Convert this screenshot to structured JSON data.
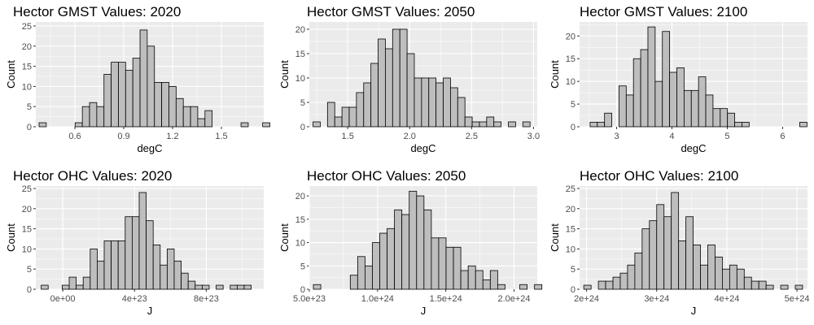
{
  "chart_data": [
    {
      "type": "bar",
      "title": "Hector GMST Values: 2020",
      "xlabel": "degC",
      "ylabel": "Count",
      "xlim": [
        0.36,
        1.76
      ],
      "ylim": [
        0,
        26
      ],
      "xticks": [
        0.6,
        0.9,
        1.2,
        1.5
      ],
      "xtick_labels": [
        "0.6",
        "0.9",
        "1.2",
        "1.5"
      ],
      "yticks": [
        0,
        5,
        10,
        15,
        20,
        25
      ],
      "bin_start": 0.38,
      "bin_width": 0.0443,
      "counts": [
        1,
        0,
        0,
        0,
        0,
        1,
        5,
        6,
        5,
        13,
        16,
        16,
        14,
        17,
        24,
        20,
        11,
        11,
        10,
        7,
        5,
        5,
        2,
        4,
        0,
        0,
        0,
        0,
        1,
        0,
        0,
        1
      ]
    },
    {
      "type": "bar",
      "title": "Hector GMST Values: 2050",
      "xlabel": "degC",
      "ylabel": "Count",
      "xlim": [
        1.19,
        3.03
      ],
      "ylim": [
        0,
        21.5
      ],
      "xticks": [
        1.5,
        2.0,
        2.5,
        3.0
      ],
      "xtick_labels": [
        "1.5",
        "2.0",
        "2.5",
        "3.0"
      ],
      "yticks": [
        0,
        5,
        10,
        15,
        20
      ],
      "bin_start": 1.22,
      "bin_width": 0.0584,
      "counts": [
        1,
        0,
        5,
        2,
        4,
        4,
        7,
        9,
        13,
        18,
        16,
        20,
        20,
        15,
        10,
        10,
        10,
        9,
        10,
        8,
        6,
        2,
        1,
        1,
        2,
        1,
        0,
        1,
        0,
        1
      ]
    },
    {
      "type": "bar",
      "title": "Hector GMST Values: 2100",
      "xlabel": "degC",
      "ylabel": "Count",
      "xlim": [
        2.33,
        6.45
      ],
      "ylim": [
        0,
        23.1
      ],
      "xticks": [
        3,
        4,
        5,
        6
      ],
      "xtick_labels": [
        "3",
        "4",
        "5",
        "6"
      ],
      "yticks": [
        0,
        5,
        10,
        15,
        20
      ],
      "bin_start": 2.52,
      "bin_width": 0.1307,
      "counts": [
        1,
        1,
        3,
        0,
        9,
        7,
        15,
        17,
        22,
        10,
        21,
        12,
        13,
        8,
        8,
        11,
        7,
        4,
        4,
        3,
        1,
        1,
        0,
        0,
        0,
        0,
        0,
        0,
        0,
        1
      ]
    },
    {
      "type": "bar",
      "title": "Hector OHC Values: 2020",
      "xlabel": "J",
      "ylabel": "Count",
      "xlim": [
        -1.5e+23,
        1.12e+24
      ],
      "ylim": [
        0,
        25.6
      ],
      "xticks": [
        0,
        4e+23,
        8e+23
      ],
      "xtick_labels": [
        "0e+00",
        "4e+23",
        "8e+23"
      ],
      "yticks": [
        0,
        5,
        10,
        15,
        20,
        25
      ],
      "bin_start": -1.2e+23,
      "bin_width": 3.9e+22,
      "counts": [
        1,
        0,
        0,
        1,
        3,
        1,
        3,
        10,
        7,
        12,
        12,
        12,
        18,
        18,
        24,
        17,
        11,
        6,
        10,
        7,
        4,
        2,
        1,
        1,
        0,
        1,
        0,
        1,
        1,
        1
      ]
    },
    {
      "type": "bar",
      "title": "Hector OHC Values: 2050",
      "xlabel": "J",
      "ylabel": "Count",
      "xlim": [
        5e+23,
        2.17e+24
      ],
      "ylim": [
        0,
        22.1
      ],
      "xticks": [
        5e+23,
        1e+24,
        1.5e+24,
        2e+24
      ],
      "xtick_labels": [
        "5.0e+23",
        "1.0e+24",
        "1.5e+24",
        "2.0e+24"
      ],
      "yticks": [
        0,
        5,
        10,
        15,
        20
      ],
      "bin_start": 5.3e+23,
      "bin_width": 5.4e+22,
      "counts": [
        1,
        0,
        0,
        0,
        0,
        3,
        7,
        5,
        10,
        12,
        13,
        17,
        16,
        21,
        20,
        17,
        11,
        11,
        9,
        9,
        4,
        5,
        4,
        2,
        4,
        1,
        0,
        0,
        1,
        0,
        1
      ]
    },
    {
      "type": "bar",
      "title": "Hector OHC Values: 2100",
      "xlabel": "J",
      "ylabel": "Count",
      "xlim": [
        1.9e+24,
        5.15e+24
      ],
      "ylim": [
        0,
        25.6
      ],
      "xticks": [
        2e+24,
        3e+24,
        4e+24,
        5e+24
      ],
      "xtick_labels": [
        "2e+24",
        "3e+24",
        "4e+24",
        "5e+24"
      ],
      "yticks": [
        0,
        5,
        10,
        15,
        20,
        25
      ],
      "bin_start": 1.96e+24,
      "bin_width": 1.04e+23,
      "counts": [
        1,
        0,
        2,
        2,
        3,
        4,
        6,
        9,
        15,
        17,
        21,
        18,
        24,
        12,
        18,
        11,
        6,
        11,
        8,
        5,
        6,
        5,
        3,
        2,
        2,
        1,
        0,
        1,
        0,
        1
      ]
    }
  ],
  "colors": {
    "panel": "#ebebeb",
    "grid": "#ffffff",
    "bar_fill": "#bebebe",
    "bar_stroke": "#000000",
    "tick_text": "#4d4d4d",
    "title_text": "#000000"
  }
}
